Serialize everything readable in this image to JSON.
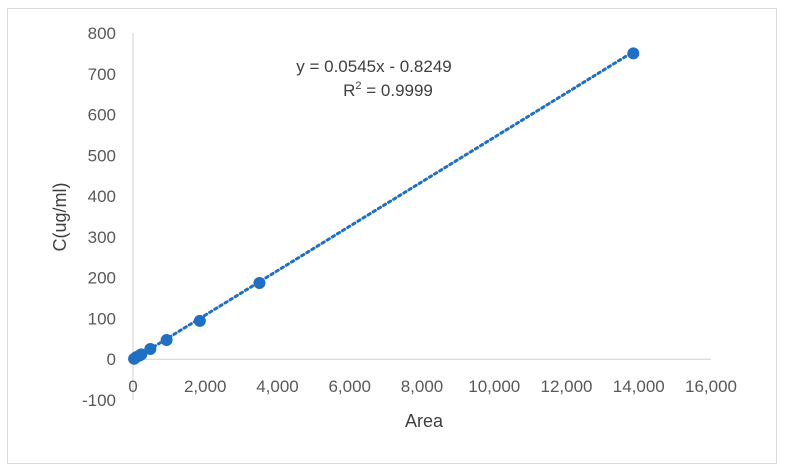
{
  "chart_data": {
    "type": "scatter",
    "title": "",
    "xlabel": "Area",
    "ylabel": "C(ug/ml)",
    "xlim": [
      0,
      16000
    ],
    "ylim": [
      -100,
      800
    ],
    "x_ticks": [
      0,
      2000,
      4000,
      6000,
      8000,
      10000,
      12000,
      14000,
      16000
    ],
    "x_tick_labels": [
      "0",
      "2,000",
      "4,000",
      "6,000",
      "8,000",
      "10,000",
      "12,000",
      "14,000",
      "16,000"
    ],
    "y_ticks": [
      -100,
      0,
      100,
      200,
      300,
      400,
      500,
      600,
      700,
      800
    ],
    "y_tick_labels": [
      "-100",
      "0",
      "100",
      "200",
      "300",
      "400",
      "500",
      "600",
      "700",
      "800"
    ],
    "grid": false,
    "series": [
      {
        "color": "#1f6fc5",
        "points": [
          {
            "x": 30,
            "y": 1
          },
          {
            "x": 90,
            "y": 5
          },
          {
            "x": 180,
            "y": 9
          },
          {
            "x": 230,
            "y": 12
          },
          {
            "x": 480,
            "y": 25
          },
          {
            "x": 930,
            "y": 47
          },
          {
            "x": 1850,
            "y": 94
          },
          {
            "x": 3500,
            "y": 187
          },
          {
            "x": 13850,
            "y": 750
          }
        ]
      }
    ],
    "trendline": {
      "style": "dotted",
      "color": "#1f6fc5",
      "slope": 0.0545,
      "intercept": -0.8249,
      "x_range": [
        0,
        13850
      ],
      "equation": "y = 0.0545x - 0.8249",
      "r_squared_prefix": "R",
      "r_squared_sup": "2",
      "r_squared_value": " = 0.9999"
    }
  }
}
